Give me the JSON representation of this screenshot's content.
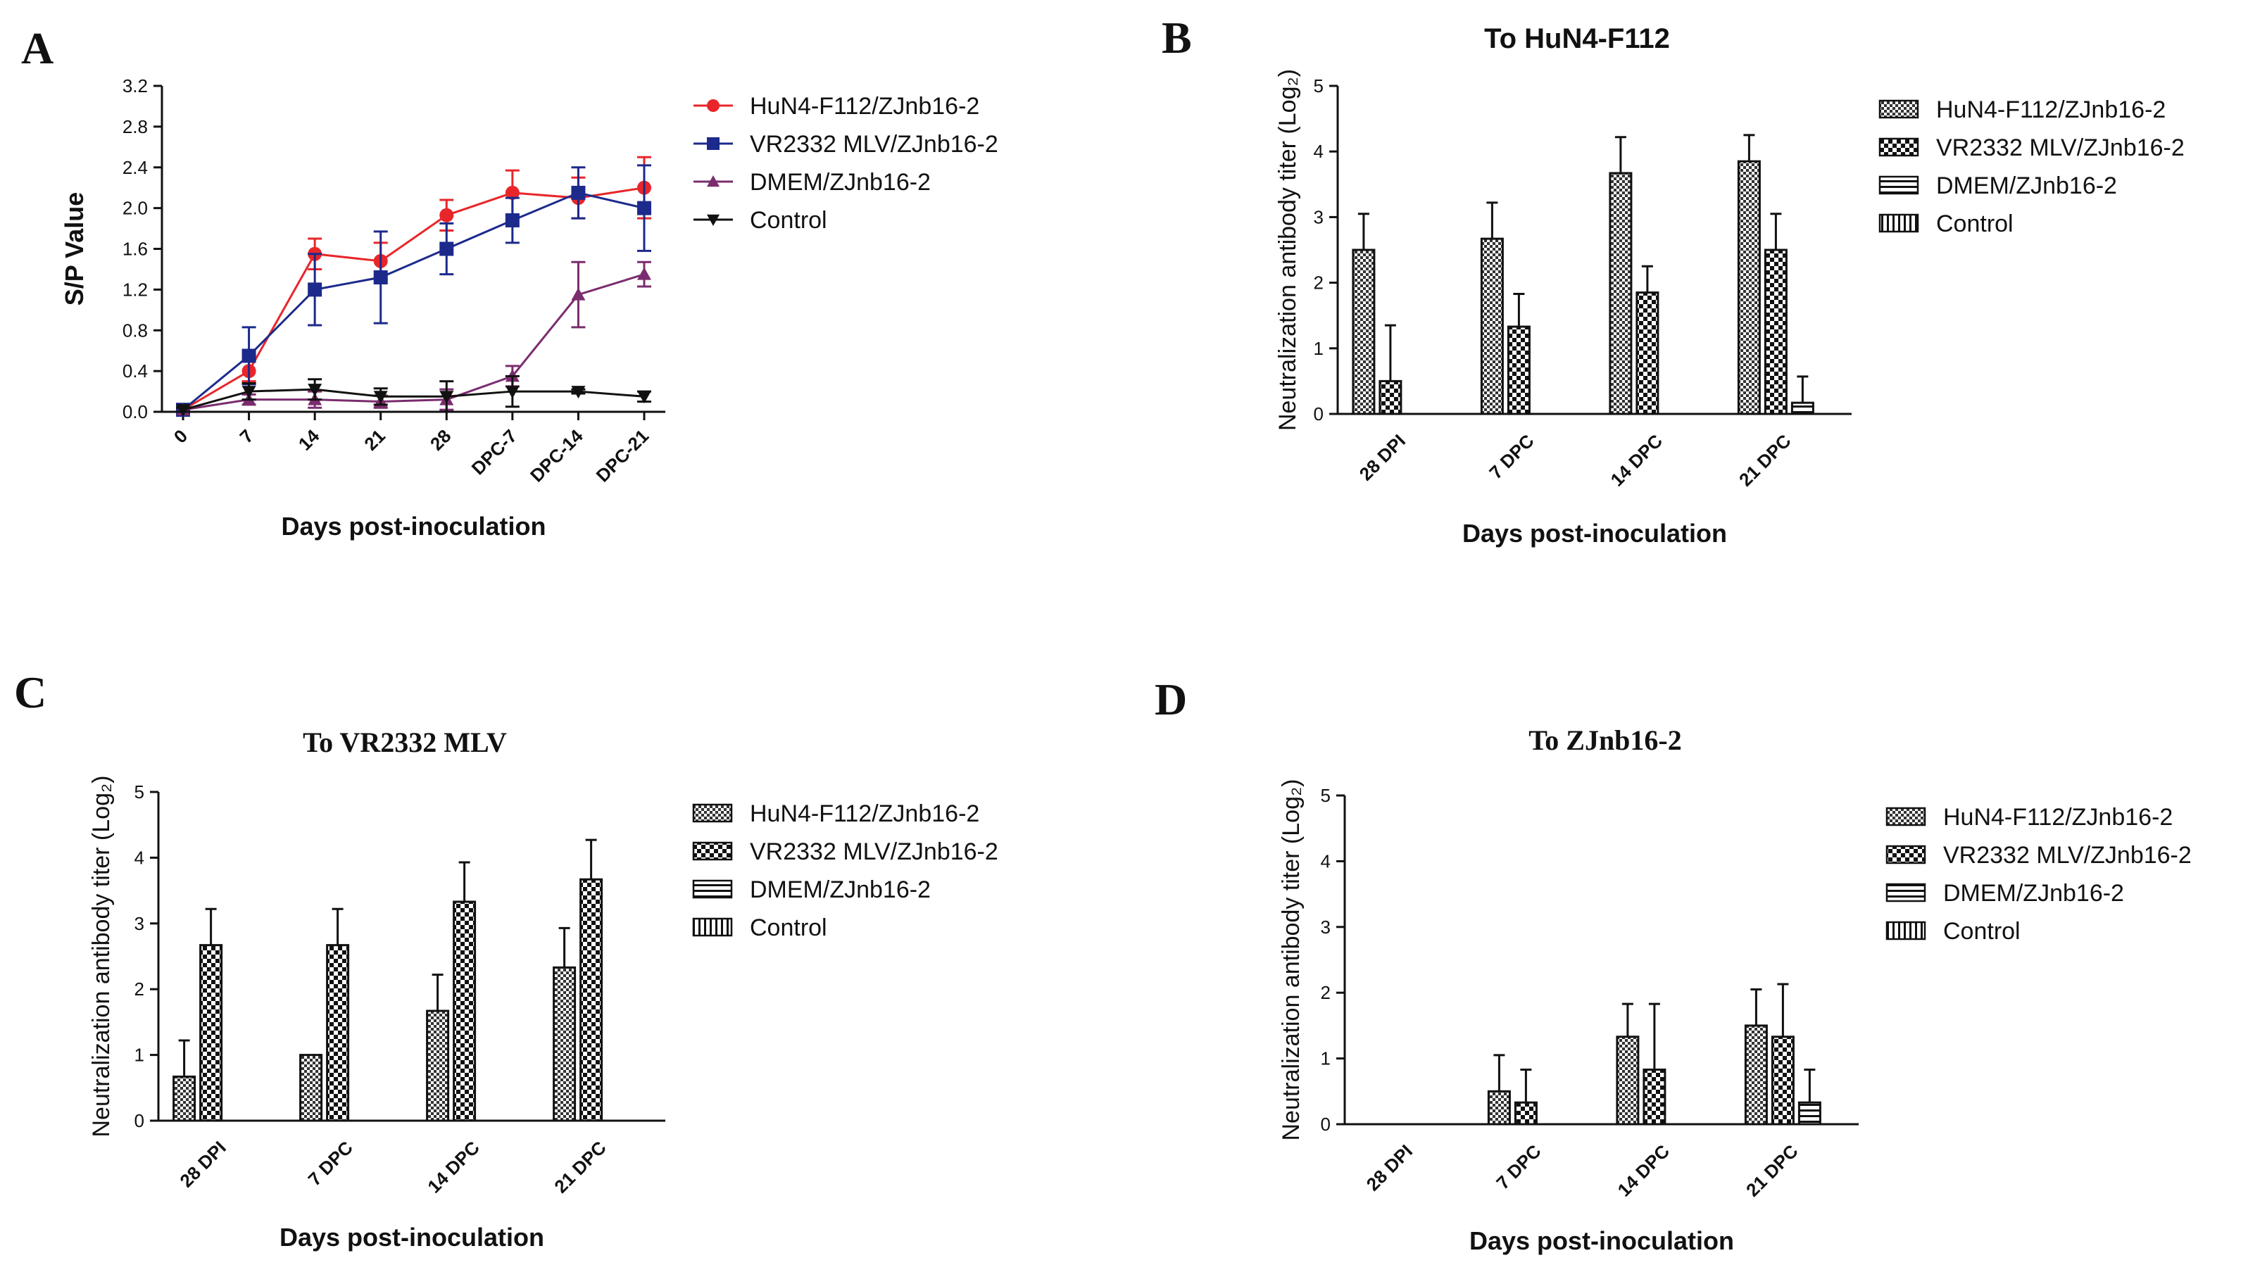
{
  "chart_data": [
    {
      "id": "A",
      "type": "line",
      "letter": "A",
      "title": "",
      "xlabel": "Days post-inoculation",
      "ylabel": "S/P Value",
      "categories": [
        "0",
        "7",
        "14",
        "21",
        "28",
        "DPC-7",
        "DPC-14",
        "DPC-21"
      ],
      "ylim": [
        0,
        3.2
      ],
      "yticks": [
        "0.0",
        "0.4",
        "0.8",
        "1.2",
        "1.6",
        "2.0",
        "2.4",
        "2.8",
        "3.2"
      ],
      "series": [
        {
          "name": "HuN4-F112/ZJnb16-2",
          "color": "#e8262a",
          "marker": "circle",
          "values": [
            0.02,
            0.4,
            1.55,
            1.48,
            1.93,
            2.15,
            2.1,
            2.2
          ],
          "errors": [
            0.02,
            0.1,
            0.15,
            0.18,
            0.15,
            0.22,
            0.2,
            0.3
          ]
        },
        {
          "name": "VR2332 MLV/ZJnb16-2",
          "color": "#1c2a8c",
          "marker": "square",
          "values": [
            0.02,
            0.55,
            1.2,
            1.32,
            1.6,
            1.88,
            2.15,
            2.0
          ],
          "errors": [
            0.02,
            0.28,
            0.35,
            0.45,
            0.25,
            0.22,
            0.25,
            0.42
          ]
        },
        {
          "name": "DMEM/ZJnb16-2",
          "color": "#7b2c6e",
          "marker": "triangle",
          "values": [
            0.02,
            0.12,
            0.12,
            0.1,
            0.12,
            0.35,
            1.15,
            1.35
          ],
          "errors": [
            0.02,
            0.05,
            0.08,
            0.06,
            0.1,
            0.1,
            0.32,
            0.12
          ]
        },
        {
          "name": "Control",
          "color": "#111111",
          "marker": "triangle-down",
          "values": [
            0.02,
            0.2,
            0.22,
            0.15,
            0.15,
            0.2,
            0.2,
            0.15
          ],
          "errors": [
            0.02,
            0.08,
            0.1,
            0.08,
            0.15,
            0.15,
            0.02,
            0.05
          ]
        }
      ]
    },
    {
      "id": "B",
      "type": "bar",
      "letter": "B",
      "title": "To HuN4-F112",
      "xlabel": "Days post-inoculation",
      "ylabel": "Neutralization antibody titer (Log₂)",
      "categories": [
        "28 DPI",
        "7 DPC",
        "14 DPC",
        "21 DPC"
      ],
      "ylim": [
        0,
        5
      ],
      "yticks": [
        "0",
        "1",
        "2",
        "3",
        "4",
        "5"
      ],
      "series": [
        {
          "name": "HuN4-F112/ZJnb16-2",
          "pattern": "dots",
          "values": [
            2.5,
            2.67,
            3.67,
            3.85
          ],
          "errors": [
            0.55,
            0.55,
            0.55,
            0.4
          ]
        },
        {
          "name": "VR2332 MLV/ZJnb16-2",
          "pattern": "checker",
          "values": [
            0.5,
            1.33,
            1.85,
            2.5
          ],
          "errors": [
            0.85,
            0.5,
            0.4,
            0.55
          ]
        },
        {
          "name": "DMEM/ZJnb16-2",
          "pattern": "hstripes",
          "values": [
            0,
            0,
            0,
            0.17
          ],
          "errors": [
            0,
            0,
            0,
            0.4
          ]
        },
        {
          "name": "Control",
          "pattern": "vstripes",
          "values": [
            0,
            0,
            0,
            0
          ],
          "errors": [
            0,
            0,
            0,
            0
          ]
        }
      ]
    },
    {
      "id": "C",
      "type": "bar",
      "letter": "C",
      "title": "To VR2332 MLV",
      "xlabel": "Days post-inoculation",
      "ylabel": "Neutralization antibody titer (Log₂)",
      "categories": [
        "28 DPI",
        "7 DPC",
        "14 DPC",
        "21 DPC"
      ],
      "ylim": [
        0,
        5
      ],
      "yticks": [
        "0",
        "1",
        "2",
        "3",
        "4",
        "5"
      ],
      "series": [
        {
          "name": "HuN4-F112/ZJnb16-2",
          "pattern": "dots",
          "values": [
            0.67,
            1.0,
            1.67,
            2.33
          ],
          "errors": [
            0.55,
            0,
            0.55,
            0.6
          ]
        },
        {
          "name": "VR2332 MLV/ZJnb16-2",
          "pattern": "checker",
          "values": [
            2.67,
            2.67,
            3.33,
            3.67
          ],
          "errors": [
            0.55,
            0.55,
            0.6,
            0.6
          ]
        },
        {
          "name": "DMEM/ZJnb16-2",
          "pattern": "hstripes",
          "values": [
            0,
            0,
            0,
            0
          ],
          "errors": [
            0,
            0,
            0,
            0
          ]
        },
        {
          "name": "Control",
          "pattern": "vstripes",
          "values": [
            0,
            0,
            0,
            0
          ],
          "errors": [
            0,
            0,
            0,
            0
          ]
        }
      ]
    },
    {
      "id": "D",
      "type": "bar",
      "letter": "D",
      "title": "To ZJnb16-2",
      "xlabel": "Days post-inoculation",
      "ylabel": "Neutralization antibody titer (Log₂)",
      "categories": [
        "28 DPI",
        "7 DPC",
        "14 DPC",
        "21 DPC"
      ],
      "ylim": [
        0,
        5
      ],
      "yticks": [
        "0",
        "1",
        "2",
        "3",
        "4",
        "5"
      ],
      "series": [
        {
          "name": "HuN4-F112/ZJnb16-2",
          "pattern": "dots",
          "values": [
            0,
            0.5,
            1.33,
            1.5
          ],
          "errors": [
            0,
            0.55,
            0.5,
            0.55
          ]
        },
        {
          "name": "VR2332 MLV/ZJnb16-2",
          "pattern": "checker",
          "values": [
            0,
            0.33,
            0.83,
            1.33
          ],
          "errors": [
            0,
            0.5,
            1.0,
            0.8
          ]
        },
        {
          "name": "DMEM/ZJnb16-2",
          "pattern": "hstripes",
          "values": [
            0,
            0,
            0,
            0.33
          ],
          "errors": [
            0,
            0,
            0,
            0.5
          ]
        },
        {
          "name": "Control",
          "pattern": "vstripes",
          "values": [
            0,
            0,
            0,
            0
          ],
          "errors": [
            0,
            0,
            0,
            0
          ]
        }
      ]
    }
  ]
}
